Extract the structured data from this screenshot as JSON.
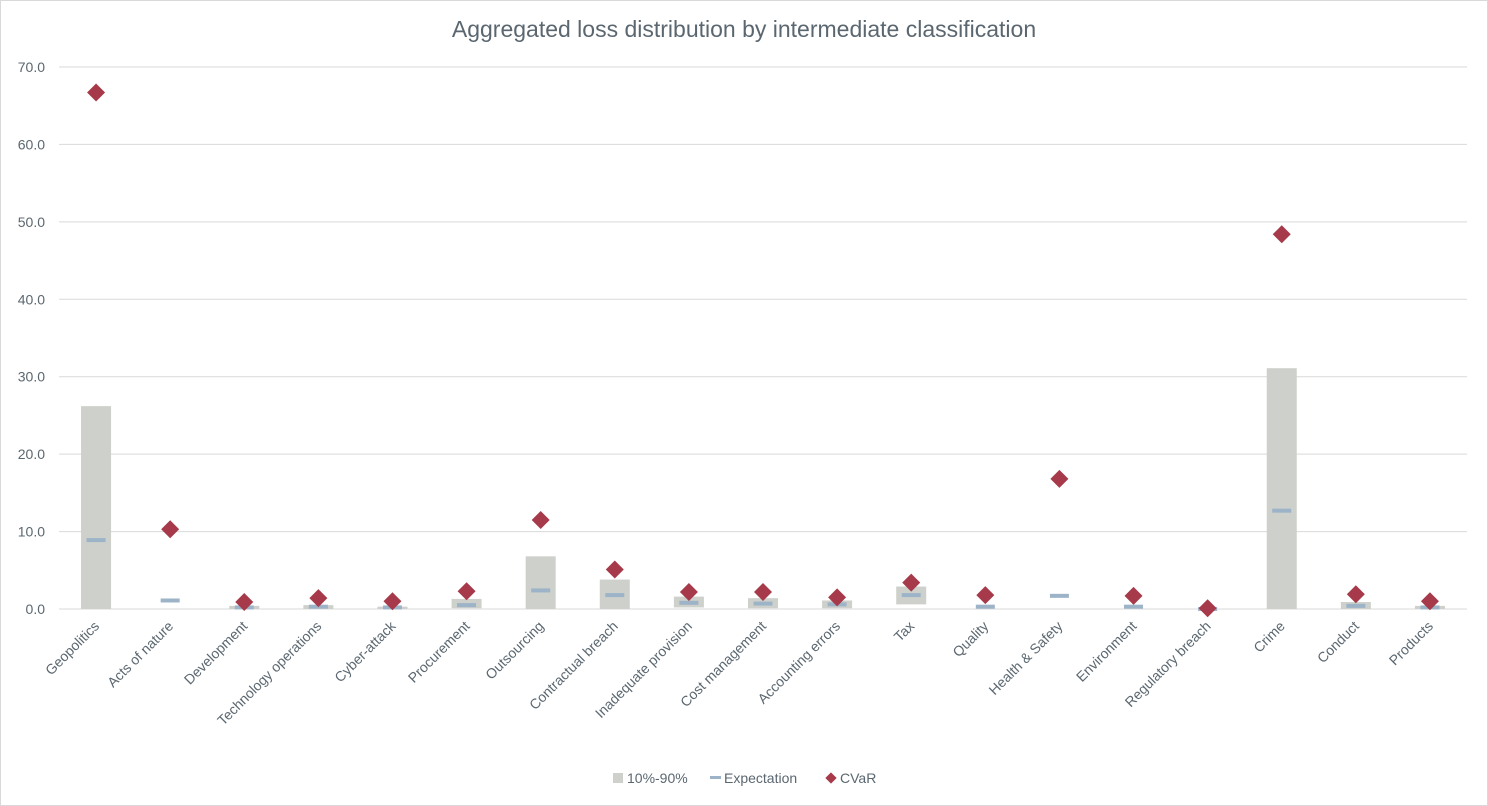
{
  "chart_data": {
    "type": "bar",
    "title": "Aggregated loss distribution by intermediate classification",
    "xlabel": "",
    "ylabel": "",
    "ylim": [
      0,
      70
    ],
    "yticks": [
      "0.0",
      "10.0",
      "20.0",
      "30.0",
      "40.0",
      "50.0",
      "60.0",
      "70.0"
    ],
    "grid": true,
    "legend_position": "bottom",
    "categories": [
      "Geopolitics",
      "Acts of nature",
      "Development",
      "Technology operations",
      "Cyber-attack",
      "Procurement",
      "Outsourcing",
      "Contractual breach",
      "Inadequate provision",
      "Cost management",
      "Accounting errors",
      "Tax",
      "Quality",
      "Health & Safety",
      "Environment",
      "Regulatory breach",
      "Crime",
      "Conduct",
      "Products"
    ],
    "series": [
      {
        "name": "10%-90%",
        "kind": "range_bar",
        "color": "#cdd0cb",
        "low": [
          0,
          0,
          0,
          0,
          0,
          0.1,
          0,
          0,
          0.2,
          0.1,
          0.1,
          0.6,
          0,
          0,
          0,
          0,
          0,
          0,
          0
        ],
        "high": [
          26.2,
          0,
          0.4,
          0.5,
          0.3,
          1.3,
          6.8,
          3.8,
          1.6,
          1.4,
          1.1,
          2.9,
          0,
          0,
          0,
          0,
          31.1,
          0.9,
          0.4
        ]
      },
      {
        "name": "Expectation",
        "kind": "dash",
        "color": "#9db3c8",
        "values": [
          8.9,
          1.1,
          0.2,
          0.3,
          0.2,
          0.5,
          2.4,
          1.8,
          0.8,
          0.7,
          0.6,
          1.8,
          0.3,
          1.7,
          0.3,
          0.0,
          12.7,
          0.4,
          0.2
        ]
      },
      {
        "name": "CVaR",
        "kind": "diamond",
        "color": "#a63a4a",
        "values": [
          66.7,
          10.3,
          0.9,
          1.4,
          1.0,
          2.3,
          11.5,
          5.1,
          2.2,
          2.2,
          1.5,
          3.4,
          1.8,
          16.8,
          1.7,
          0.1,
          48.4,
          1.9,
          1.0
        ]
      }
    ]
  }
}
